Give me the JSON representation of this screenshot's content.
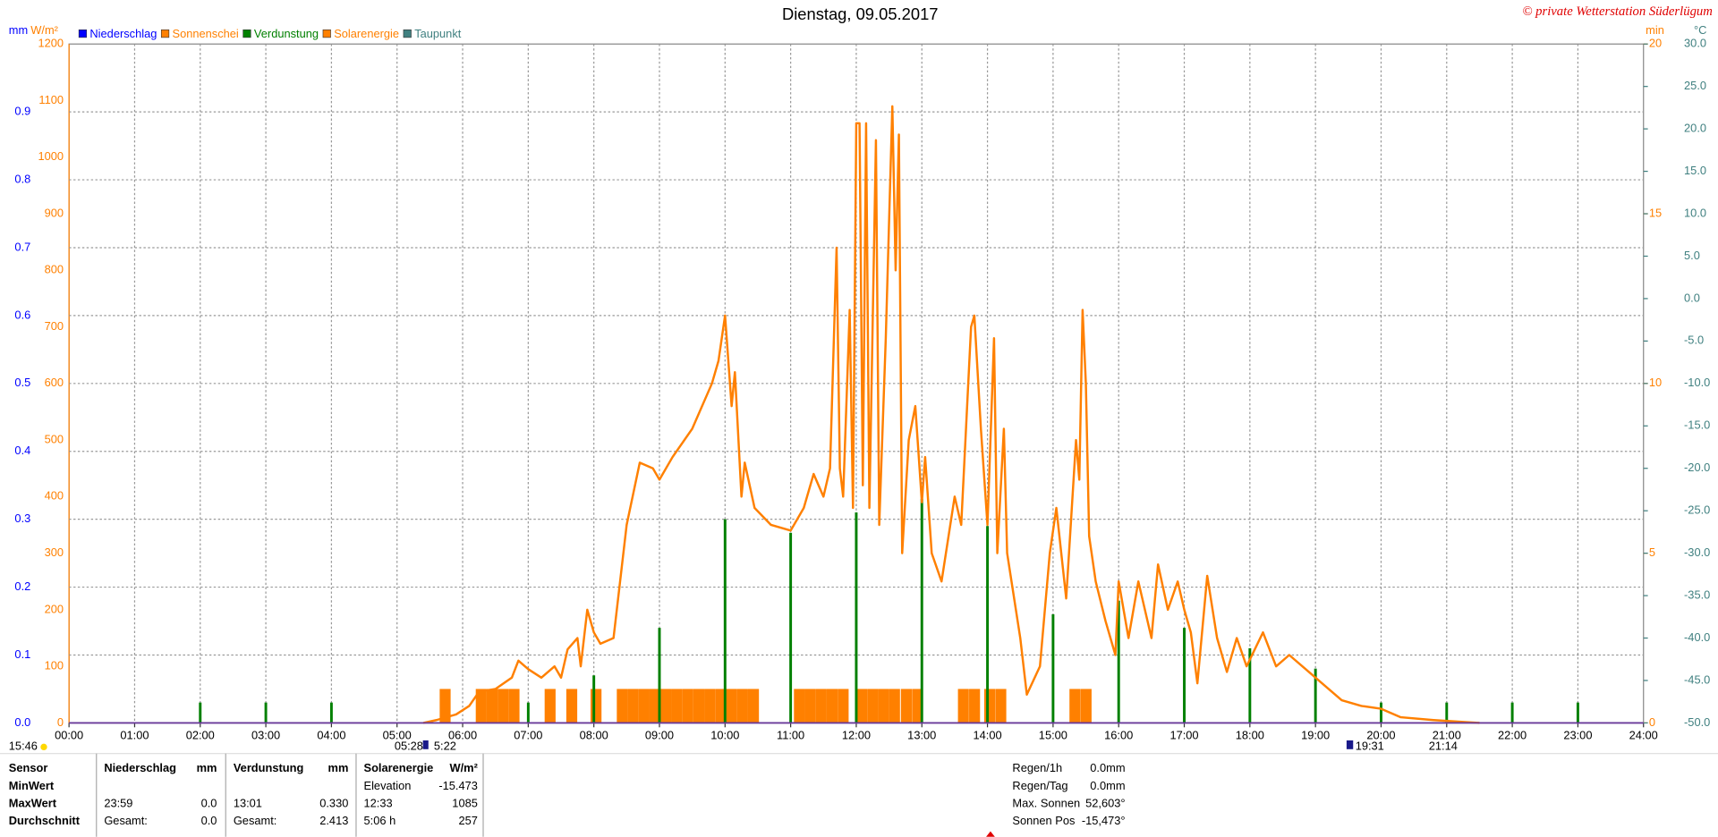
{
  "chart_data": {
    "type": "line",
    "title": "Dienstag, 09.05.2017",
    "credit": "© private Wetterstation Süderlügum",
    "xlim": [
      0,
      24
    ],
    "xticks": [
      {
        "value": 0,
        "label": "00:00"
      },
      {
        "value": 1,
        "label": "01:00"
      },
      {
        "value": 2,
        "label": "02:00"
      },
      {
        "value": 3,
        "label": "03:00"
      },
      {
        "value": 4,
        "label": "04:00"
      },
      {
        "value": 5,
        "label": "05:00"
      },
      {
        "value": 6,
        "label": "06:00"
      },
      {
        "value": 7,
        "label": "07:00"
      },
      {
        "value": 8,
        "label": "08:00"
      },
      {
        "value": 9,
        "label": "09:00"
      },
      {
        "value": 10,
        "label": "10:00"
      },
      {
        "value": 11,
        "label": "11:00"
      },
      {
        "value": 12,
        "label": "12:00"
      },
      {
        "value": 13,
        "label": "13:00"
      },
      {
        "value": 14,
        "label": "14:00"
      },
      {
        "value": 15,
        "label": "15:00"
      },
      {
        "value": 16,
        "label": "16:00"
      },
      {
        "value": 17,
        "label": "17:00"
      },
      {
        "value": 18,
        "label": "18:00"
      },
      {
        "value": 19,
        "label": "19:00"
      },
      {
        "value": 20,
        "label": "20:00"
      },
      {
        "value": 21,
        "label": "21:00"
      },
      {
        "value": 22,
        "label": "22:00"
      },
      {
        "value": 23,
        "label": "23:00"
      },
      {
        "value": 24,
        "label": "24:00"
      }
    ],
    "grid": true,
    "axes": [
      {
        "label": "mm",
        "color": "#0000ff",
        "ylim": [
          0,
          1.0
        ],
        "yticks": [
          {
            "value": 0,
            "label": "0.0"
          },
          0.1,
          0.2,
          0.3,
          0.4,
          0.5,
          0.6,
          0.7,
          0.8,
          0.9
        ]
      },
      {
        "label": "W/m²",
        "color": "#ff8000",
        "ylim": [
          0,
          1200
        ],
        "yticks": [
          0,
          100,
          200,
          300,
          400,
          500,
          600,
          700,
          800,
          900,
          1000,
          1100,
          1200
        ]
      },
      {
        "label": "min",
        "color": "#ff8000",
        "ylim": [
          0,
          20
        ],
        "yticks": [
          0,
          5,
          10,
          15,
          20
        ]
      },
      {
        "label": "°C",
        "color": "#408080",
        "ylim": [
          -50,
          30
        ],
        "yticks": [
          {
            "value": -50,
            "label": "-50.0"
          },
          {
            "value": -45,
            "label": "-45.0"
          },
          {
            "value": -40,
            "label": "-40.0"
          },
          {
            "value": -35,
            "label": "-35.0"
          },
          {
            "value": -30,
            "label": "-30.0"
          },
          {
            "value": -25,
            "label": "-25.0"
          },
          {
            "value": -20,
            "label": "-20.0"
          },
          {
            "value": -15,
            "label": "-15.0"
          },
          {
            "value": -10,
            "label": "-10.0"
          },
          {
            "value": -5,
            "label": "-5.0"
          },
          {
            "value": 0,
            "label": "0.0"
          },
          {
            "value": 5,
            "label": "5.0"
          },
          {
            "value": 10,
            "label": "10.0"
          },
          {
            "value": 15,
            "label": "15.0"
          },
          {
            "value": 20,
            "label": "20.0"
          },
          {
            "value": 25,
            "label": "25.0"
          },
          {
            "value": 30,
            "label": "30.0"
          }
        ]
      }
    ],
    "series": [
      {
        "name": "Niederschlag",
        "color": "#0000ff"
      },
      {
        "name": "Sonnenschei",
        "color": "#ff8000",
        "type": "bar",
        "axis": 2,
        "x": [
          5.65,
          6.2,
          6.367,
          6.533,
          6.7,
          7.25,
          7.58,
          7.95,
          8.35,
          8.517,
          8.683,
          8.85,
          9.017,
          9.183,
          9.35,
          9.517,
          9.683,
          9.85,
          10.017,
          10.183,
          10.35,
          11.05,
          11.217,
          11.383,
          11.55,
          11.717,
          12.0,
          12.167,
          12.333,
          12.5,
          12.68,
          12.85,
          13.55,
          13.72,
          13.95,
          14.12,
          15.25,
          15.42
        ],
        "values": [
          1,
          1,
          1,
          1,
          1,
          1,
          1,
          1,
          1,
          1,
          1,
          1,
          1,
          1,
          1,
          1,
          1,
          1,
          1,
          1,
          1,
          1,
          1,
          1,
          1,
          1,
          1,
          1,
          1,
          1,
          1,
          1,
          1,
          1,
          1,
          1,
          1,
          1
        ]
      },
      {
        "name": "Verdunstung",
        "color": "#008000",
        "type": "spike",
        "axis": 0,
        "x": [
          2,
          3,
          4,
          7,
          8,
          9,
          10,
          11,
          12,
          13,
          14,
          15,
          16,
          17,
          18,
          19,
          20,
          21,
          22,
          23
        ],
        "values": [
          0.03,
          0.03,
          0.03,
          0.03,
          0.07,
          0.14,
          0.3,
          0.28,
          0.31,
          0.33,
          0.29,
          0.16,
          0.18,
          0.14,
          0.11,
          0.08,
          0.03,
          0.03,
          0.03,
          0.03
        ]
      },
      {
        "name": "Solarenergie",
        "color": "#ff8000",
        "type": "line",
        "axis": 1,
        "x": [
          5.4,
          5.6,
          5.9,
          6.1,
          6.25,
          6.5,
          6.75,
          6.85,
          7.0,
          7.2,
          7.4,
          7.5,
          7.6,
          7.75,
          7.8,
          7.9,
          8.0,
          8.1,
          8.3,
          8.5,
          8.7,
          8.9,
          9.0,
          9.2,
          9.5,
          9.8,
          9.9,
          10.0,
          10.1,
          10.15,
          10.25,
          10.3,
          10.45,
          10.7,
          11.0,
          11.2,
          11.35,
          11.5,
          11.6,
          11.7,
          11.75,
          11.8,
          11.9,
          11.95,
          12.0,
          12.05,
          12.1,
          12.15,
          12.2,
          12.3,
          12.35,
          12.45,
          12.55,
          12.6,
          12.65,
          12.7,
          12.8,
          12.9,
          13.0,
          13.05,
          13.15,
          13.3,
          13.5,
          13.6,
          13.75,
          13.8,
          13.9,
          14.0,
          14.1,
          14.15,
          14.25,
          14.3,
          14.5,
          14.6,
          14.8,
          14.95,
          15.05,
          15.2,
          15.35,
          15.4,
          15.45,
          15.5,
          15.55,
          15.65,
          15.8,
          15.95,
          16.0,
          16.15,
          16.3,
          16.5,
          16.6,
          16.75,
          16.9,
          17.0,
          17.1,
          17.2,
          17.35,
          17.5,
          17.65,
          17.8,
          17.95,
          18.2,
          18.4,
          18.6,
          18.9,
          19.2,
          19.4,
          19.7,
          20.0,
          20.3,
          20.8,
          21.2,
          21.5
        ],
        "values": [
          0,
          5,
          15,
          30,
          55,
          60,
          80,
          110,
          95,
          80,
          100,
          80,
          130,
          150,
          100,
          200,
          160,
          140,
          150,
          350,
          460,
          450,
          430,
          470,
          520,
          600,
          640,
          720,
          560,
          620,
          400,
          460,
          380,
          350,
          340,
          380,
          440,
          400,
          450,
          840,
          450,
          400,
          730,
          380,
          1060,
          1060,
          420,
          1060,
          380,
          1030,
          350,
          680,
          1090,
          800,
          1040,
          300,
          500,
          560,
          390,
          470,
          300,
          250,
          400,
          350,
          700,
          720,
          520,
          350,
          680,
          300,
          520,
          300,
          150,
          50,
          100,
          300,
          380,
          220,
          500,
          430,
          730,
          600,
          330,
          250,
          180,
          120,
          250,
          150,
          250,
          150,
          280,
          200,
          250,
          200,
          160,
          70,
          260,
          150,
          90,
          150,
          100,
          160,
          100,
          120,
          90,
          60,
          40,
          30,
          25,
          10,
          5,
          2,
          0
        ]
      },
      {
        "name": "Taupunkt",
        "color": "#408080"
      }
    ],
    "annotations": [
      "15:46",
      "05:28",
      "5:22",
      "19:31",
      "21:14"
    ]
  },
  "stats": {
    "header": {
      "sensor": "Sensor",
      "rain": [
        "Niederschlag",
        "mm"
      ],
      "evap": [
        "Verdunstung",
        "mm"
      ],
      "solar": [
        "Solarenergie",
        "W/m²"
      ]
    },
    "rows": [
      {
        "label": "MinWert",
        "solar": [
          "Elevation",
          "-15.473"
        ]
      },
      {
        "label": "MaxWert",
        "rain": [
          "23:59",
          "0.0"
        ],
        "evap": [
          "13:01",
          "0.330"
        ],
        "solar": [
          "12:33",
          "1085"
        ]
      },
      {
        "label": "Durchschnitt",
        "rain": [
          "Gesamt:",
          "0.0"
        ],
        "evap": [
          "Gesamt:",
          "2.413"
        ],
        "solar": [
          "5:06 h",
          "257"
        ]
      }
    ]
  },
  "sun_info": [
    [
      "Regen/1h",
      "0.0mm"
    ],
    [
      "Regen/Tag",
      "0.0mm"
    ],
    [
      "Max. Sonnen",
      "52,603°"
    ],
    [
      "Sonnen Pos",
      "-15,473°"
    ]
  ]
}
